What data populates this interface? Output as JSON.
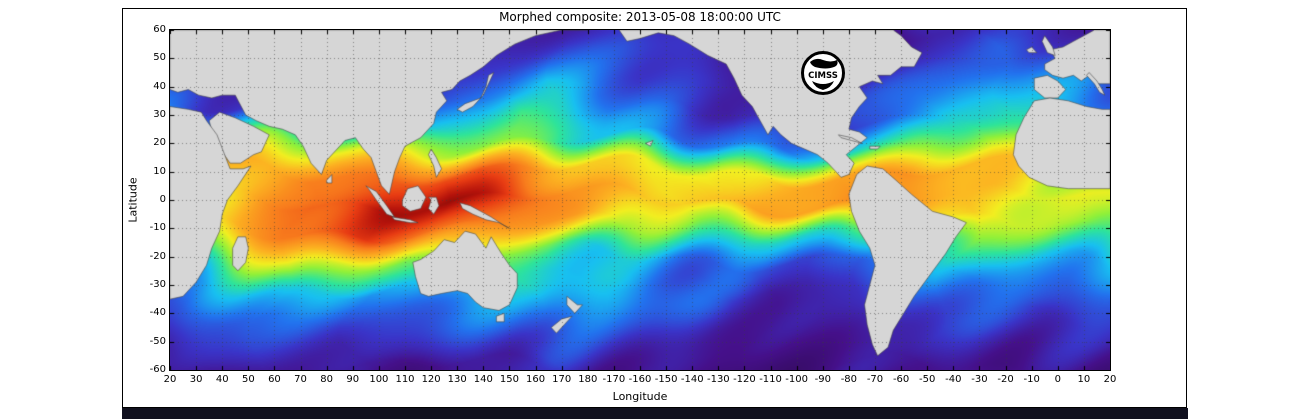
{
  "figure": {
    "title": "Morphed composite: 2013-05-08 18:00:00 UTC",
    "xlabel": "Longitude",
    "ylabel": "Latitude",
    "logo_text": "CIMSS"
  },
  "chart_data": {
    "type": "heatmap",
    "title": "Morphed composite: 2013-05-08 18:00:00 UTC",
    "xlabel": "Longitude",
    "ylabel": "Latitude",
    "x_tick_labels": [
      "20",
      "30",
      "40",
      "50",
      "60",
      "70",
      "80",
      "90",
      "100",
      "110",
      "120",
      "130",
      "140",
      "150",
      "160",
      "170",
      "180",
      "-170",
      "-160",
      "-150",
      "-140",
      "-130",
      "-120",
      "-110",
      "-100",
      "-90",
      "-80",
      "-70",
      "-60",
      "-50",
      "-40",
      "-30",
      "-20",
      "-10",
      "0",
      "10",
      "20"
    ],
    "y_tick_labels": [
      "60",
      "50",
      "40",
      "30",
      "20",
      "10",
      "0",
      "-10",
      "-20",
      "-30",
      "-40",
      "-50",
      "-60"
    ],
    "y_range": [
      -60,
      60
    ],
    "x_range_deg_east": [
      20,
      380
    ],
    "grid": "dotted",
    "land_color": "#d6d6d6",
    "value_scale": [
      0,
      100
    ],
    "colormap_stops": [
      [
        0,
        "#2a0845"
      ],
      [
        12,
        "#45108a"
      ],
      [
        20,
        "#3a34c8"
      ],
      [
        28,
        "#2272ee"
      ],
      [
        36,
        "#18c0f0"
      ],
      [
        44,
        "#2ee49a"
      ],
      [
        52,
        "#8ef03a"
      ],
      [
        60,
        "#f2ee20"
      ],
      [
        68,
        "#fcb321"
      ],
      [
        78,
        "#f87d1d"
      ],
      [
        87,
        "#e83c13"
      ],
      [
        94,
        "#b5130b"
      ],
      [
        100,
        "#7a0a06"
      ]
    ],
    "grid_lat": [
      60,
      50,
      40,
      30,
      20,
      10,
      0,
      -10,
      -20,
      -30,
      -40,
      -50,
      -60
    ],
    "grid_lon_deg_east": [
      20,
      40,
      60,
      80,
      100,
      120,
      140,
      160,
      180,
      200,
      220,
      240,
      260,
      280,
      300,
      320,
      340,
      360,
      380
    ],
    "values": [
      [
        14,
        11,
        9,
        7,
        9,
        11,
        14,
        17,
        20,
        17,
        14,
        11,
        9,
        7,
        11,
        17,
        21,
        17,
        14
      ],
      [
        17,
        14,
        11,
        11,
        14,
        17,
        21,
        26,
        23,
        20,
        17,
        14,
        11,
        11,
        14,
        21,
        26,
        21,
        17
      ],
      [
        21,
        17,
        14,
        17,
        20,
        26,
        31,
        36,
        29,
        23,
        20,
        17,
        14,
        17,
        21,
        29,
        34,
        29,
        23
      ],
      [
        26,
        21,
        20,
        26,
        31,
        40,
        46,
        40,
        31,
        26,
        21,
        17,
        17,
        21,
        29,
        37,
        40,
        34,
        29
      ],
      [
        36,
        43,
        50,
        57,
        60,
        57,
        54,
        46,
        37,
        31,
        29,
        26,
        29,
        40,
        50,
        54,
        46,
        40,
        34
      ],
      [
        50,
        64,
        74,
        79,
        83,
        86,
        83,
        74,
        69,
        64,
        60,
        57,
        64,
        71,
        74,
        69,
        60,
        54,
        50
      ],
      [
        57,
        71,
        83,
        89,
        94,
        97,
        91,
        83,
        74,
        69,
        64,
        69,
        74,
        79,
        71,
        66,
        63,
        60,
        57
      ],
      [
        54,
        69,
        79,
        83,
        86,
        83,
        79,
        74,
        69,
        57,
        46,
        40,
        43,
        50,
        60,
        64,
        57,
        51,
        49
      ],
      [
        43,
        54,
        60,
        57,
        54,
        51,
        57,
        54,
        49,
        37,
        29,
        23,
        21,
        26,
        40,
        49,
        43,
        37,
        34
      ],
      [
        31,
        37,
        40,
        36,
        31,
        34,
        40,
        43,
        37,
        29,
        21,
        17,
        17,
        20,
        29,
        34,
        31,
        29,
        26
      ],
      [
        23,
        26,
        29,
        26,
        23,
        26,
        31,
        34,
        29,
        23,
        17,
        14,
        14,
        17,
        23,
        26,
        23,
        20,
        20
      ],
      [
        17,
        20,
        21,
        19,
        17,
        20,
        23,
        26,
        21,
        17,
        14,
        11,
        11,
        14,
        17,
        20,
        17,
        16,
        14
      ],
      [
        11,
        13,
        14,
        13,
        11,
        13,
        16,
        17,
        14,
        11,
        10,
        9,
        9,
        10,
        13,
        14,
        13,
        11,
        11
      ]
    ]
  }
}
